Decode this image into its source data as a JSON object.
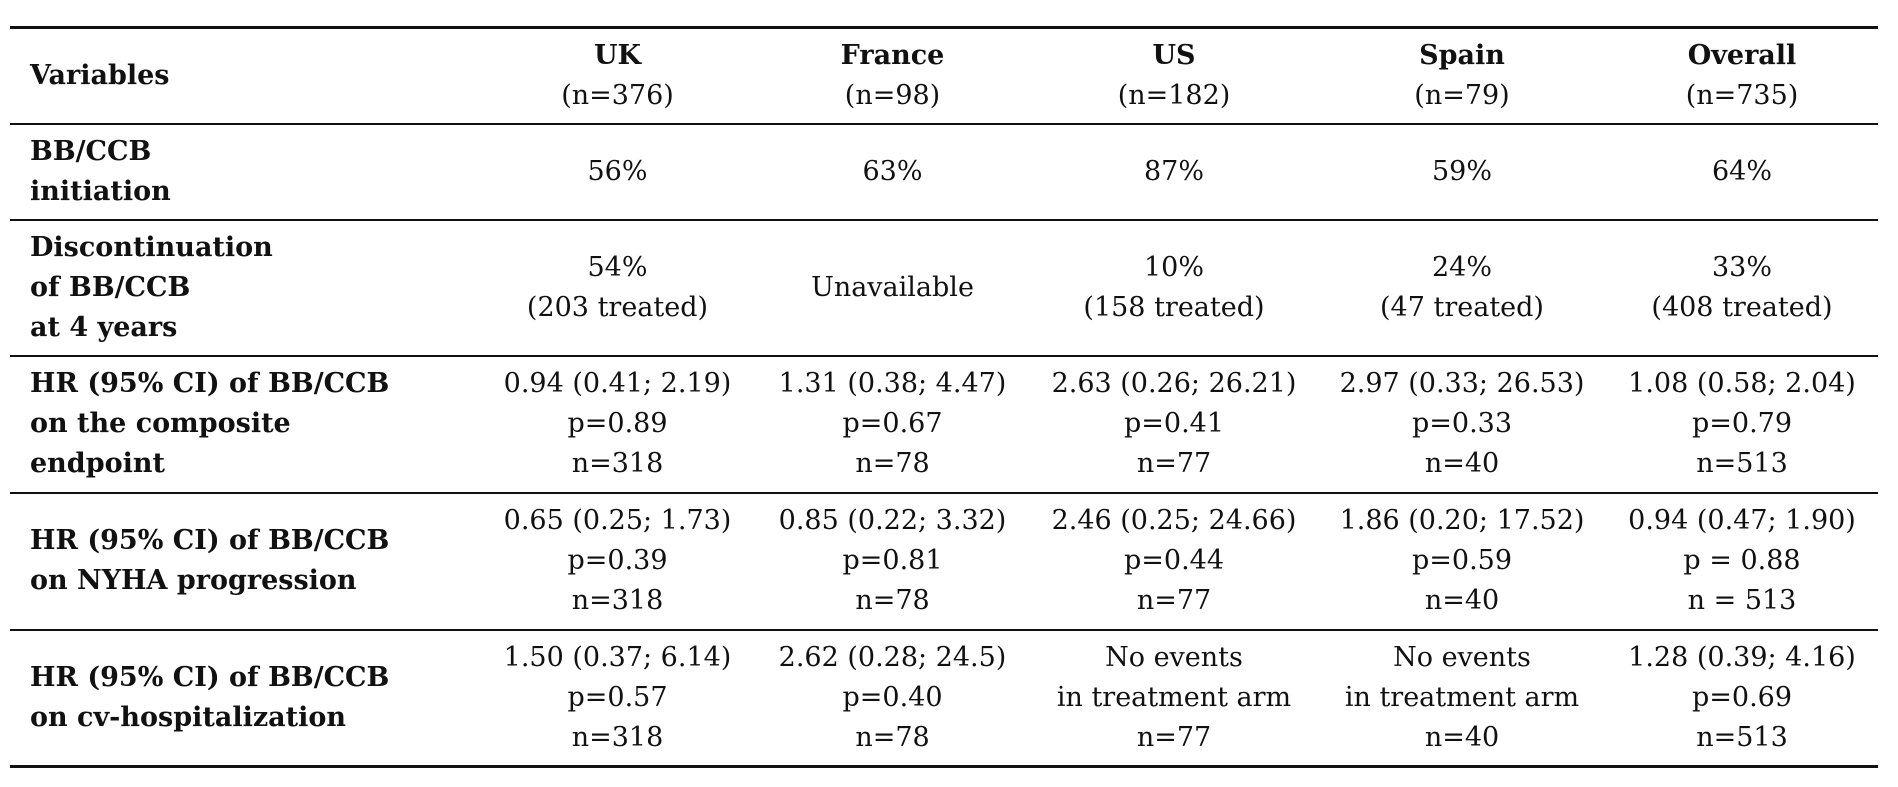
{
  "table": {
    "variables_header": "Variables",
    "columns": [
      {
        "name": "UK",
        "n": "(n=376)"
      },
      {
        "name": "France",
        "n": "(n=98)"
      },
      {
        "name": "US",
        "n": "(n=182)"
      },
      {
        "name": "Spain",
        "n": "(n=79)"
      },
      {
        "name": "Overall",
        "n": "(n=735)"
      }
    ],
    "rows": [
      {
        "label": [
          "BB/CCB",
          "initiation"
        ],
        "cells": [
          [
            "56%"
          ],
          [
            "63%"
          ],
          [
            "87%"
          ],
          [
            "59%"
          ],
          [
            "64%"
          ]
        ]
      },
      {
        "label": [
          "Discontinuation",
          "of BB/CCB",
          "at 4 years"
        ],
        "cells": [
          [
            "54%",
            "(203 treated)"
          ],
          [
            "Unavailable"
          ],
          [
            "10%",
            "(158 treated)"
          ],
          [
            "24%",
            "(47 treated)"
          ],
          [
            "33%",
            "(408 treated)"
          ]
        ]
      },
      {
        "label": [
          "HR (95% CI) of BB/CCB",
          "on the composite",
          "endpoint"
        ],
        "cells": [
          [
            "0.94 (0.41; 2.19)",
            "p=0.89",
            "n=318"
          ],
          [
            "1.31 (0.38; 4.47)",
            "p=0.67",
            "n=78"
          ],
          [
            "2.63 (0.26; 26.21)",
            "p=0.41",
            "n=77"
          ],
          [
            "2.97 (0.33; 26.53)",
            "p=0.33",
            "n=40"
          ],
          [
            "1.08 (0.58; 2.04)",
            "p=0.79",
            "n=513"
          ]
        ]
      },
      {
        "label": [
          "HR (95% CI) of BB/CCB",
          "on NYHA progression"
        ],
        "cells": [
          [
            "0.65 (0.25; 1.73)",
            "p=0.39",
            "n=318"
          ],
          [
            "0.85 (0.22; 3.32)",
            "p=0.81",
            "n=78"
          ],
          [
            "2.46 (0.25; 24.66)",
            "p=0.44",
            "n=77"
          ],
          [
            "1.86 (0.20; 17.52)",
            "p=0.59",
            "n=40"
          ],
          [
            "0.94 (0.47; 1.90)",
            "p = 0.88",
            "n = 513"
          ]
        ]
      },
      {
        "label": [
          "HR (95% CI) of BB/CCB",
          "on cv-hospitalization"
        ],
        "cells": [
          [
            "1.50 (0.37; 6.14)",
            "p=0.57",
            "n=318"
          ],
          [
            "2.62 (0.28; 24.5)",
            "p=0.40",
            "n=78"
          ],
          [
            "No events",
            "in treatment arm",
            "n=77"
          ],
          [
            "No events",
            "in treatment arm",
            "n=40"
          ],
          [
            "1.28 (0.39; 4.16)",
            "p=0.69",
            "n=513"
          ]
        ]
      }
    ]
  }
}
